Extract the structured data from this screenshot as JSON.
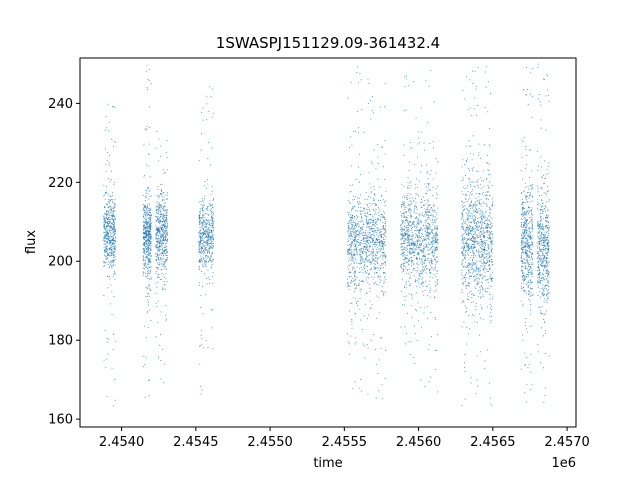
{
  "chart_data": {
    "type": "scatter",
    "title": "1SWASPJ151129.09-361432.4",
    "xlabel": "time",
    "ylabel": "flux",
    "x_offset_label": "1e6",
    "x_tick_labels": [
      "2.4540",
      "2.4545",
      "2.4550",
      "2.4555",
      "2.4560",
      "2.4565",
      "2.4570"
    ],
    "y_tick_labels": [
      "160",
      "180",
      "200",
      "220",
      "240"
    ],
    "x_ticks": [
      2454000,
      2454500,
      2455000,
      2455500,
      2456000,
      2456500,
      2457000
    ],
    "y_ticks": [
      160,
      180,
      200,
      220,
      240
    ],
    "xlim": [
      2453720,
      2457060
    ],
    "ylim": [
      158,
      251.5
    ],
    "grid": false,
    "marker_color": "#1f77b4",
    "point_size": "tiny",
    "series": [
      {
        "segments": [
          {
            "x_start": 2453880,
            "x_end": 2453960,
            "center": 207,
            "core_sd": 4.5,
            "min": 163,
            "max": 240
          },
          {
            "x_start": 2454145,
            "x_end": 2454200,
            "center": 206,
            "core_sd": 5,
            "min": 164,
            "max": 250
          },
          {
            "x_start": 2454230,
            "x_end": 2454310,
            "center": 206,
            "core_sd": 5,
            "min": 168,
            "max": 233
          },
          {
            "x_start": 2454520,
            "x_end": 2454620,
            "center": 206,
            "core_sd": 5,
            "min": 164,
            "max": 246
          },
          {
            "x_start": 2455520,
            "x_end": 2455650,
            "center": 205,
            "core_sd": 6,
            "min": 167,
            "max": 250
          },
          {
            "x_start": 2455650,
            "x_end": 2455780,
            "center": 205,
            "core_sd": 6,
            "min": 165,
            "max": 249
          },
          {
            "x_start": 2455880,
            "x_end": 2456000,
            "center": 206,
            "core_sd": 6,
            "min": 170,
            "max": 250
          },
          {
            "x_start": 2456000,
            "x_end": 2456130,
            "center": 205,
            "core_sd": 7,
            "min": 165,
            "max": 249
          },
          {
            "x_start": 2456290,
            "x_end": 2456390,
            "center": 205,
            "core_sd": 8,
            "min": 163,
            "max": 250
          },
          {
            "x_start": 2456390,
            "x_end": 2456500,
            "center": 205,
            "core_sd": 8,
            "min": 163,
            "max": 250
          },
          {
            "x_start": 2456690,
            "x_end": 2456770,
            "center": 204,
            "core_sd": 7,
            "min": 163,
            "max": 250
          },
          {
            "x_start": 2456800,
            "x_end": 2456880,
            "center": 204,
            "core_sd": 8,
            "min": 163,
            "max": 250
          }
        ]
      }
    ]
  }
}
